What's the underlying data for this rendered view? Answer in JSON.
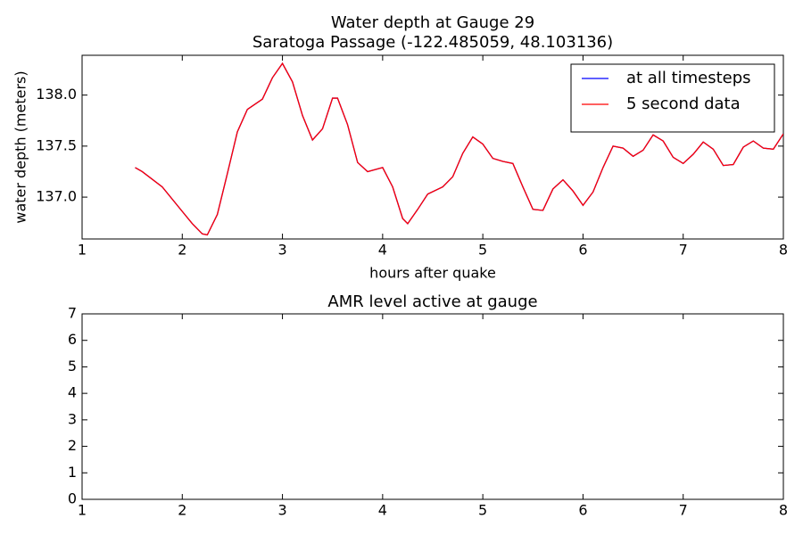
{
  "chart_data": [
    {
      "type": "line",
      "title": "Water depth at Gauge 29",
      "subtitle": "Saratoga Passage  (-122.485059, 48.103136)",
      "x_label": "hours after quake",
      "y_label": "water depth (meters)",
      "x": [
        1.53,
        1.6,
        1.8,
        2.0,
        2.1,
        2.2,
        2.25,
        2.35,
        2.45,
        2.55,
        2.65,
        2.8,
        2.9,
        3.0,
        3.1,
        3.2,
        3.3,
        3.4,
        3.5,
        3.55,
        3.65,
        3.75,
        3.85,
        4.0,
        4.1,
        4.2,
        4.25,
        4.35,
        4.45,
        4.6,
        4.7,
        4.8,
        4.9,
        5.0,
        5.1,
        5.2,
        5.3,
        5.4,
        5.5,
        5.6,
        5.7,
        5.8,
        5.9,
        6.0,
        6.1,
        6.2,
        6.3,
        6.4,
        6.5,
        6.6,
        6.7,
        6.8,
        6.9,
        7.0,
        7.1,
        7.2,
        7.3,
        7.4,
        7.5,
        7.6,
        7.7,
        7.8,
        7.9,
        8.0
      ],
      "series": [
        {
          "name": "at all timesteps",
          "color": "#0000ff",
          "values": [
            137.29,
            137.25,
            137.1,
            136.86,
            136.74,
            136.64,
            136.63,
            136.83,
            137.23,
            137.64,
            137.86,
            137.96,
            138.17,
            138.31,
            138.13,
            137.8,
            137.56,
            137.67,
            137.97,
            137.97,
            137.71,
            137.34,
            137.25,
            137.29,
            137.1,
            136.79,
            136.74,
            136.88,
            137.03,
            137.1,
            137.2,
            137.43,
            137.59,
            137.52,
            137.38,
            137.35,
            137.33,
            137.1,
            136.88,
            136.87,
            137.08,
            137.17,
            137.06,
            136.92,
            137.05,
            137.29,
            137.5,
            137.48,
            137.4,
            137.46,
            137.61,
            137.55,
            137.39,
            137.33,
            137.42,
            137.54,
            137.47,
            137.31,
            137.32,
            137.49,
            137.55,
            137.48,
            137.47,
            137.62
          ]
        },
        {
          "name": "5 second data",
          "color": "#ff0000",
          "values": [
            137.29,
            137.25,
            137.1,
            136.86,
            136.74,
            136.64,
            136.63,
            136.83,
            137.23,
            137.64,
            137.86,
            137.96,
            138.17,
            138.31,
            138.13,
            137.8,
            137.56,
            137.67,
            137.97,
            137.97,
            137.71,
            137.34,
            137.25,
            137.29,
            137.1,
            136.79,
            136.74,
            136.88,
            137.03,
            137.1,
            137.2,
            137.43,
            137.59,
            137.52,
            137.38,
            137.35,
            137.33,
            137.1,
            136.88,
            136.87,
            137.08,
            137.17,
            137.06,
            136.92,
            137.05,
            137.29,
            137.5,
            137.48,
            137.4,
            137.46,
            137.61,
            137.55,
            137.39,
            137.33,
            137.42,
            137.54,
            137.47,
            137.31,
            137.32,
            137.49,
            137.55,
            137.48,
            137.47,
            137.62
          ]
        }
      ],
      "xlim": [
        1,
        8
      ],
      "xticks": [
        1,
        2,
        3,
        4,
        5,
        6,
        7,
        8
      ],
      "ylim": [
        136.59,
        138.39
      ],
      "yticks": [
        {
          "value": 137,
          "label": "137.0"
        },
        137.5,
        {
          "value": 138,
          "label": "138.0"
        }
      ],
      "legend": "upper right"
    },
    {
      "type": "line",
      "title": "AMR level active at gauge",
      "xlim": [
        1,
        8
      ],
      "xticks": [
        1,
        2,
        3,
        4,
        5,
        6,
        7,
        8
      ],
      "ylim": [
        0,
        7
      ],
      "yticks": [
        0,
        1,
        2,
        3,
        4,
        5,
        6,
        7
      ]
    }
  ]
}
